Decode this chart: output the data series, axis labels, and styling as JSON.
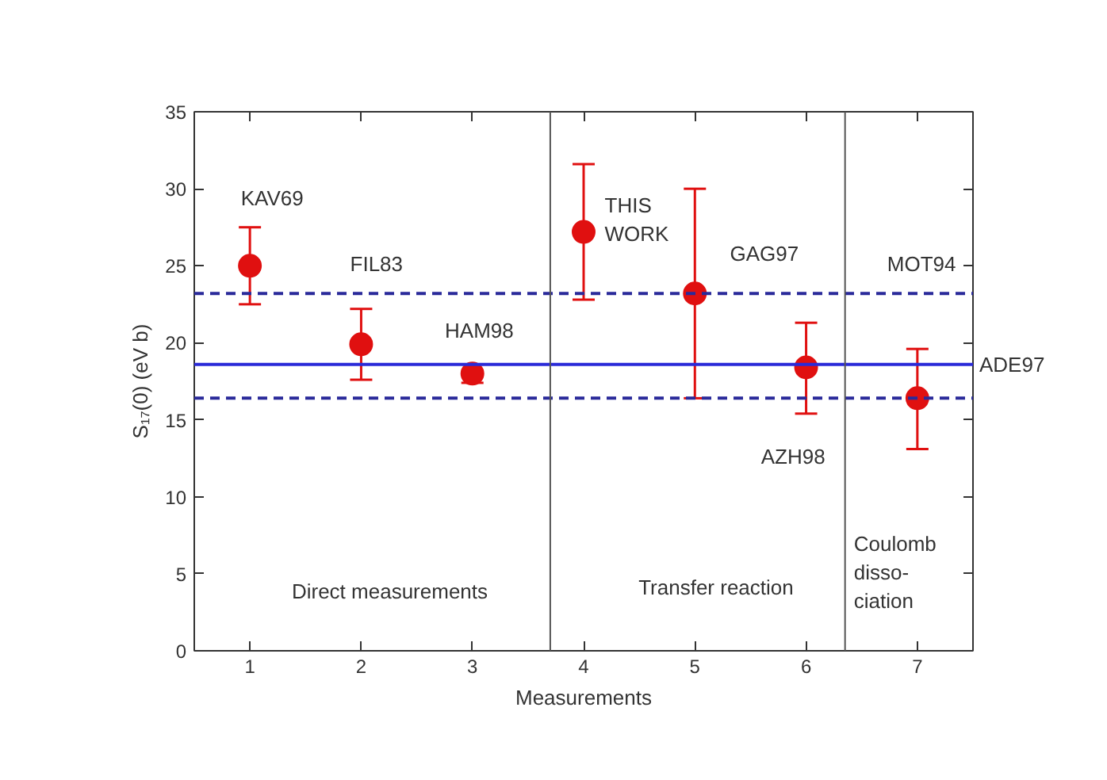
{
  "chart_data": {
    "type": "scatter",
    "xlabel": "Measurements",
    "ylabel": "S₁₇(0) (eV b)",
    "x": [
      1,
      2,
      3,
      4,
      5,
      6,
      7
    ],
    "series": [
      {
        "color": "#e01010",
        "values": [
          25.0,
          19.9,
          18.0,
          27.2,
          23.2,
          18.4,
          16.4
        ],
        "errors": [
          [
            22.5,
            27.5
          ],
          [
            17.6,
            22.2
          ],
          [
            17.4,
            18.6
          ],
          [
            22.8,
            31.6
          ],
          [
            16.4,
            30.0
          ],
          [
            15.4,
            21.3
          ],
          [
            13.1,
            19.6
          ]
        ]
      }
    ],
    "marker": "circle",
    "grid": false,
    "xlim": [
      0.5,
      7.5
    ],
    "xticks": [
      1,
      2,
      3,
      4,
      5,
      6,
      7
    ],
    "ylim": [
      0,
      35
    ],
    "yticks": [
      0,
      5,
      10,
      15,
      20,
      25,
      30,
      35
    ],
    "ref_lines": [
      {
        "axis": "y",
        "value": 18.6,
        "label": "ADE97",
        "color": "#2a2ad8",
        "line_style": "solid"
      },
      {
        "axis": "y",
        "value": 23.2,
        "color": "#2a2a9a",
        "line_style": "dashed"
      },
      {
        "axis": "y",
        "value": 16.4,
        "color": "#2a2a9a",
        "line_style": "dashed"
      },
      {
        "axis": "x",
        "value": 3.7,
        "color": "#555555",
        "line_style": "solid"
      },
      {
        "axis": "x",
        "value": 6.35,
        "color": "#555555",
        "line_style": "solid"
      }
    ],
    "annotations": [
      "KAV69",
      "FIL83",
      "HAM98",
      "THIS\nWORK",
      "GAG97",
      "AZH98",
      "MOT94",
      "Direct measurements",
      "Transfer reaction",
      "Coulomb\ndisso-\nciation"
    ]
  }
}
